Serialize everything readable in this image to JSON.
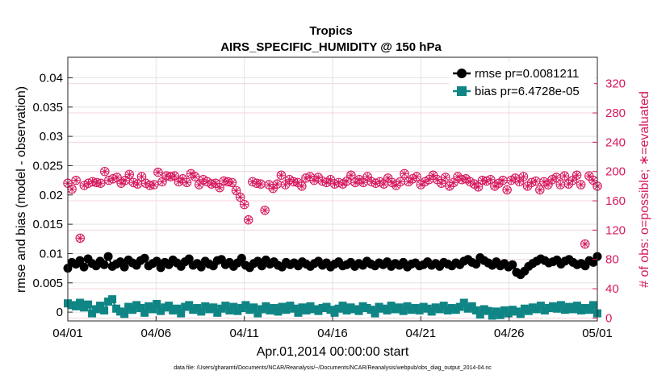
{
  "chart_data": {
    "type": "line",
    "title": "Tropics",
    "subtitle": "AIRS_SPECIFIC_HUMIDITY @ 150 hPa",
    "xlabel": "Apr.01,2014 00:00:00 start",
    "ylabel_left": "rmse and bias (model - observation)",
    "ylabel_right": "# of obs: o=possible; ∗=evaluated",
    "footnote": "data file: /Users/gharamti/Documents/NCAR/Reanalysis/~/Documents/NCAR/Reanalysis/webpub/obs_diag_output_2014-04.nc",
    "x_ticks": [
      "04/01",
      "04/06",
      "04/11",
      "04/16",
      "04/21",
      "04/26",
      "05/01"
    ],
    "x_tick_days": [
      0,
      5,
      10,
      15,
      20,
      25,
      30
    ],
    "xlim": [
      0,
      30
    ],
    "ylim_left": [
      -0.0015,
      0.0435
    ],
    "yticks_left": [
      "0",
      "0.005",
      "0.01",
      "0.015",
      "0.02",
      "0.025",
      "0.03",
      "0.035",
      "0.04"
    ],
    "yticks_left_values": [
      0,
      0.005,
      0.01,
      0.015,
      0.02,
      0.025,
      0.03,
      0.035,
      0.04
    ],
    "ylim_right": [
      -4,
      356
    ],
    "yticks_right": [
      "0",
      "40",
      "80",
      "120",
      "160",
      "200",
      "240",
      "280",
      "320"
    ],
    "yticks_right_values": [
      0,
      40,
      80,
      120,
      160,
      200,
      240,
      280,
      320
    ],
    "legend": [
      {
        "label": "rmse pr=0.0081211",
        "color": "#000000",
        "marker": "circle"
      },
      {
        "label": "bias pr=6.4728e-05",
        "color": "#0f8585",
        "marker": "square"
      }
    ],
    "legend_position": "top-right",
    "series": [
      {
        "name": "rmse",
        "axis": "left",
        "color": "#000000",
        "values": [
          0.0075,
          0.0085,
          0.0082,
          0.0088,
          0.0077,
          0.0091,
          0.0083,
          0.0079,
          0.0087,
          0.0081,
          0.0095,
          0.0078,
          0.0082,
          0.0086,
          0.0077,
          0.0089,
          0.0084,
          0.008,
          0.0088,
          0.0092,
          0.0079,
          0.0083,
          0.0087,
          0.0076,
          0.0085,
          0.0081,
          0.0089,
          0.0084,
          0.0078,
          0.0086,
          0.0091,
          0.008,
          0.0083,
          0.0077,
          0.0087,
          0.0082,
          0.0079,
          0.0088,
          0.009,
          0.0081,
          0.0085,
          0.0078,
          0.0084,
          0.0092,
          0.008,
          0.0076,
          0.0083,
          0.0087,
          0.0079,
          0.0089,
          0.0082,
          0.0086,
          0.008,
          0.0077,
          0.0085,
          0.0081,
          0.0084,
          0.0079,
          0.0086,
          0.0082,
          0.0078,
          0.0083,
          0.0087,
          0.008,
          0.0084,
          0.0077,
          0.0082,
          0.0086,
          0.0079,
          0.0081,
          0.0085,
          0.0078,
          0.0083,
          0.008,
          0.0087,
          0.0082,
          0.0079,
          0.0084,
          0.0081,
          0.0086,
          0.0078,
          0.0083,
          0.008,
          0.0085,
          0.0077,
          0.0082,
          0.0084,
          0.0079,
          0.0081,
          0.0086,
          0.008,
          0.0083,
          0.0078,
          0.0085,
          0.0082,
          0.0079,
          0.0084,
          0.0081,
          0.0087,
          0.009,
          0.0085,
          0.0082,
          0.0093,
          0.0088,
          0.0084,
          0.008,
          0.0086,
          0.0079,
          0.0083,
          0.0077,
          0.0081,
          0.0068,
          0.0064,
          0.007,
          0.0078,
          0.0083,
          0.0087,
          0.0091,
          0.0088,
          0.0084,
          0.0086,
          0.0089,
          0.0082,
          0.0087,
          0.009,
          0.0085,
          0.0081,
          0.0083,
          0.0079,
          0.0088,
          0.0085,
          0.0095
        ]
      },
      {
        "name": "bias",
        "axis": "left",
        "color": "#0f8585",
        "values": [
          0.0015,
          0.0012,
          0.001,
          0.0016,
          0.0008,
          0.0013,
          -0.0002,
          0.0005,
          0.0011,
          0.0003,
          0.0018,
          0.0022,
          0.0006,
          0.0001,
          -0.0003,
          0.0009,
          0.0004,
          0.0012,
          0.0007,
          -0.0001,
          0.001,
          0.0005,
          0.0014,
          0.0002,
          0.0008,
          0.0011,
          0.0003,
          0.0006,
          -0.0002,
          0.0009,
          0.0012,
          0.0004,
          0.0007,
          0.0001,
          0.001,
          0.0005,
          0.0008,
          -0.0001,
          0.0006,
          0.0011,
          0.0003,
          0.0009,
          0.0002,
          0.0007,
          0.0012,
          0.0004,
          0.0008,
          -0.0002,
          0.0005,
          0.001,
          0.0003,
          0.0007,
          0.0001,
          0.0009,
          0.0004,
          0.0011,
          0.0006,
          -0.0001,
          0.0008,
          0.0003,
          0.001,
          0.0005,
          0.0002,
          0.0007,
          0.0009,
          0.0004,
          -0.0001,
          0.0006,
          0.0011,
          0.0003,
          0.0008,
          0.0005,
          0.0002,
          0.001,
          0.0007,
          0.0004,
          -0.0002,
          0.0009,
          0.0006,
          0.0003,
          0.0011,
          0.0005,
          0.0008,
          0.0002,
          0.001,
          0.0004,
          0.0007,
          0.0003,
          0.0009,
          0.0006,
          0.0001,
          0.0008,
          0.0005,
          0.0011,
          0.0003,
          0.0007,
          0.0004,
          0.0009,
          0.0016,
          0.0006,
          0.001,
          0.0003,
          -0.0004,
          0.0005,
          0.0002,
          -0.0006,
          0.0001,
          -0.0005,
          0.0003,
          -0.0002,
          0.0004,
          0.0001,
          -0.0003,
          0.0006,
          0.0002,
          0.0008,
          0.0005,
          0.0011,
          0.0003,
          0.0007,
          0.001,
          0.0006,
          0.0012,
          0.0004,
          0.0009,
          0.0005,
          0.0011,
          0.0003,
          0.0007,
          0.0004,
          0.0012,
          -0.0002
        ]
      },
      {
        "name": "obs possible",
        "axis": "right",
        "color": "#d6195f",
        "marker": "o",
        "values": [
          184,
          176,
          188,
          109,
          181,
          184,
          186,
          185,
          184,
          200,
          188,
          190,
          192,
          184,
          188,
          196,
          185,
          183,
          193,
          184,
          181,
          182,
          199,
          186,
          194,
          193,
          194,
          186,
          190,
          185,
          197,
          193,
          182,
          189,
          186,
          183,
          184,
          178,
          187,
          186,
          185,
          174,
          165,
          155,
          134,
          186,
          184,
          183,
          147,
          182,
          177,
          183,
          195,
          182,
          189,
          186,
          185,
          180,
          191,
          193,
          188,
          192,
          187,
          185,
          189,
          183,
          185,
          183,
          187,
          195,
          185,
          189,
          185,
          193,
          186,
          184,
          186,
          183,
          191,
          185,
          181,
          186,
          197,
          186,
          190,
          193,
          182,
          186,
          189,
          195,
          189,
          184,
          192,
          180,
          185,
          193,
          189,
          190,
          186,
          183,
          179,
          188,
          187,
          189,
          180,
          184,
          188,
          175,
          188,
          191,
          186,
          193,
          180,
          185,
          187,
          175,
          186,
          182,
          189,
          192,
          182,
          194,
          183,
          188,
          195,
          182,
          101,
          194,
          188,
          180
        ]
      },
      {
        "name": "obs evaluated",
        "axis": "right",
        "color": "#d6195f",
        "marker": "*",
        "values": [
          184,
          176,
          188,
          109,
          181,
          184,
          186,
          185,
          184,
          200,
          188,
          190,
          192,
          184,
          188,
          196,
          185,
          183,
          193,
          184,
          181,
          182,
          199,
          186,
          194,
          193,
          194,
          186,
          190,
          185,
          197,
          193,
          182,
          189,
          186,
          183,
          184,
          178,
          187,
          186,
          185,
          174,
          165,
          155,
          134,
          186,
          184,
          183,
          147,
          182,
          177,
          183,
          195,
          182,
          189,
          186,
          185,
          180,
          191,
          193,
          188,
          192,
          187,
          185,
          189,
          183,
          185,
          183,
          187,
          195,
          185,
          189,
          185,
          193,
          186,
          184,
          186,
          183,
          191,
          185,
          181,
          186,
          197,
          186,
          190,
          193,
          182,
          186,
          189,
          195,
          189,
          184,
          192,
          180,
          185,
          193,
          189,
          190,
          186,
          183,
          179,
          188,
          187,
          189,
          180,
          184,
          188,
          175,
          188,
          191,
          186,
          193,
          180,
          185,
          187,
          175,
          186,
          182,
          189,
          192,
          182,
          194,
          183,
          188,
          195,
          182,
          101,
          194,
          188,
          180
        ]
      }
    ]
  }
}
